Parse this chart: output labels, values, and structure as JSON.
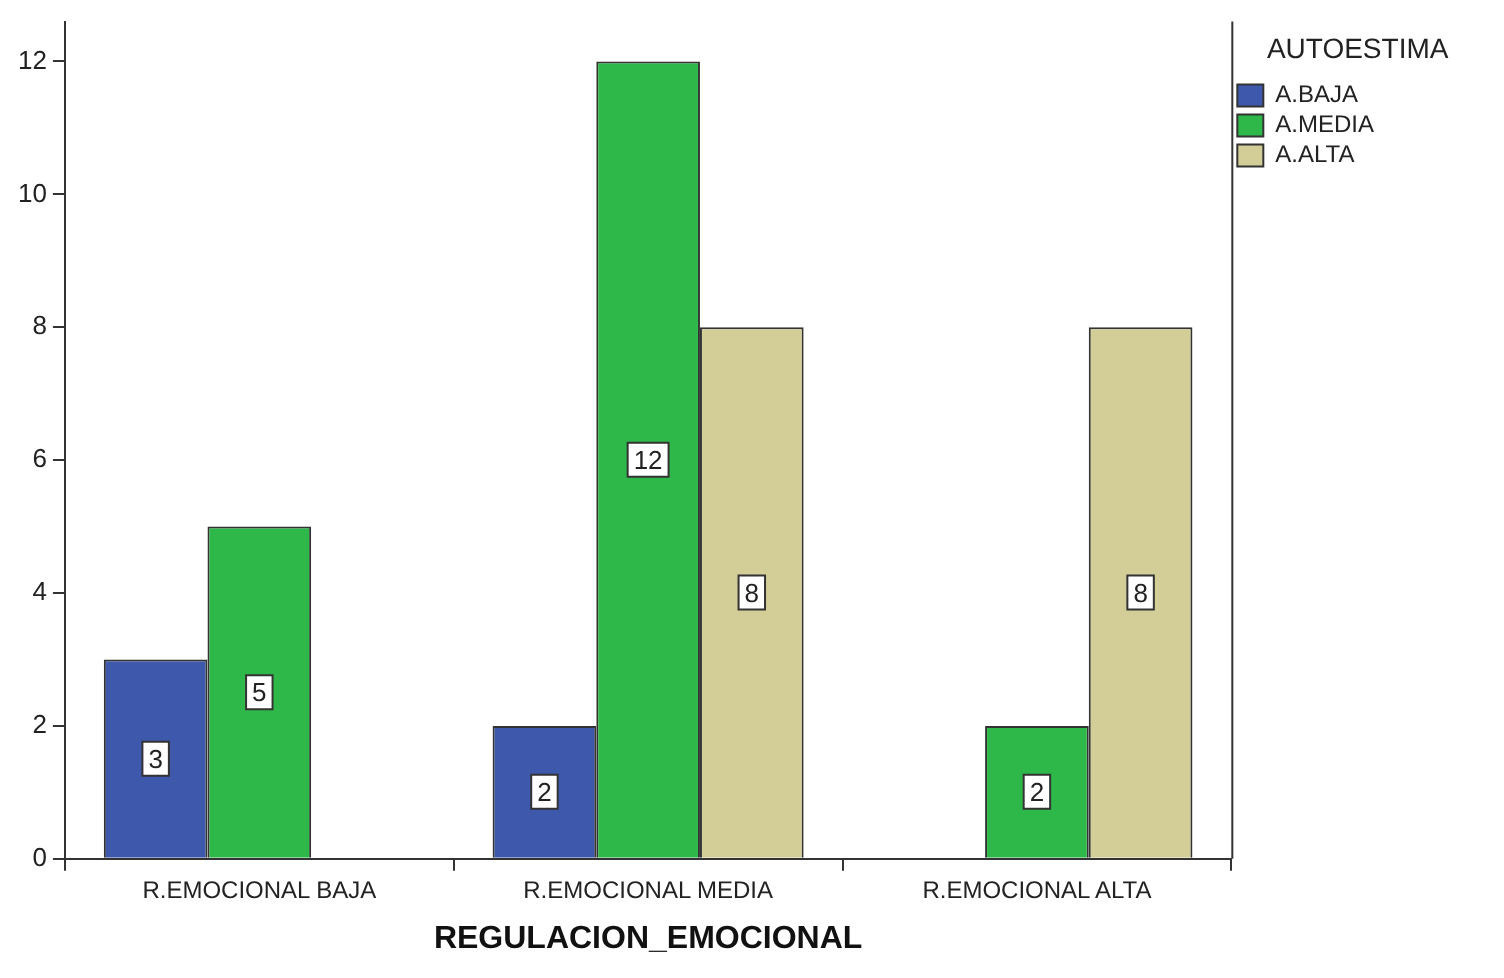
{
  "chart_data": {
    "type": "bar",
    "xlabel": "REGULACION_EMOCIONAL",
    "legend_title": "AUTOESTIMA",
    "categories": [
      "R.EMOCIONAL BAJA",
      "R.EMOCIONAL MEDIA",
      "R.EMOCIONAL ALTA"
    ],
    "series": [
      {
        "name": "A.BAJA",
        "color": "#3e58ac",
        "values": [
          3,
          2,
          null
        ]
      },
      {
        "name": "A.MEDIA",
        "color": "#2fb84a",
        "values": [
          5,
          12,
          2
        ]
      },
      {
        "name": "A.ALTA",
        "color": "#d3ce97",
        "values": [
          null,
          8,
          8
        ]
      }
    ],
    "ylim": [
      0,
      12.6
    ],
    "yticks": [
      0,
      2,
      4,
      6,
      8,
      10,
      12
    ],
    "grid": false,
    "legend": "top right",
    "data_labels": true
  }
}
